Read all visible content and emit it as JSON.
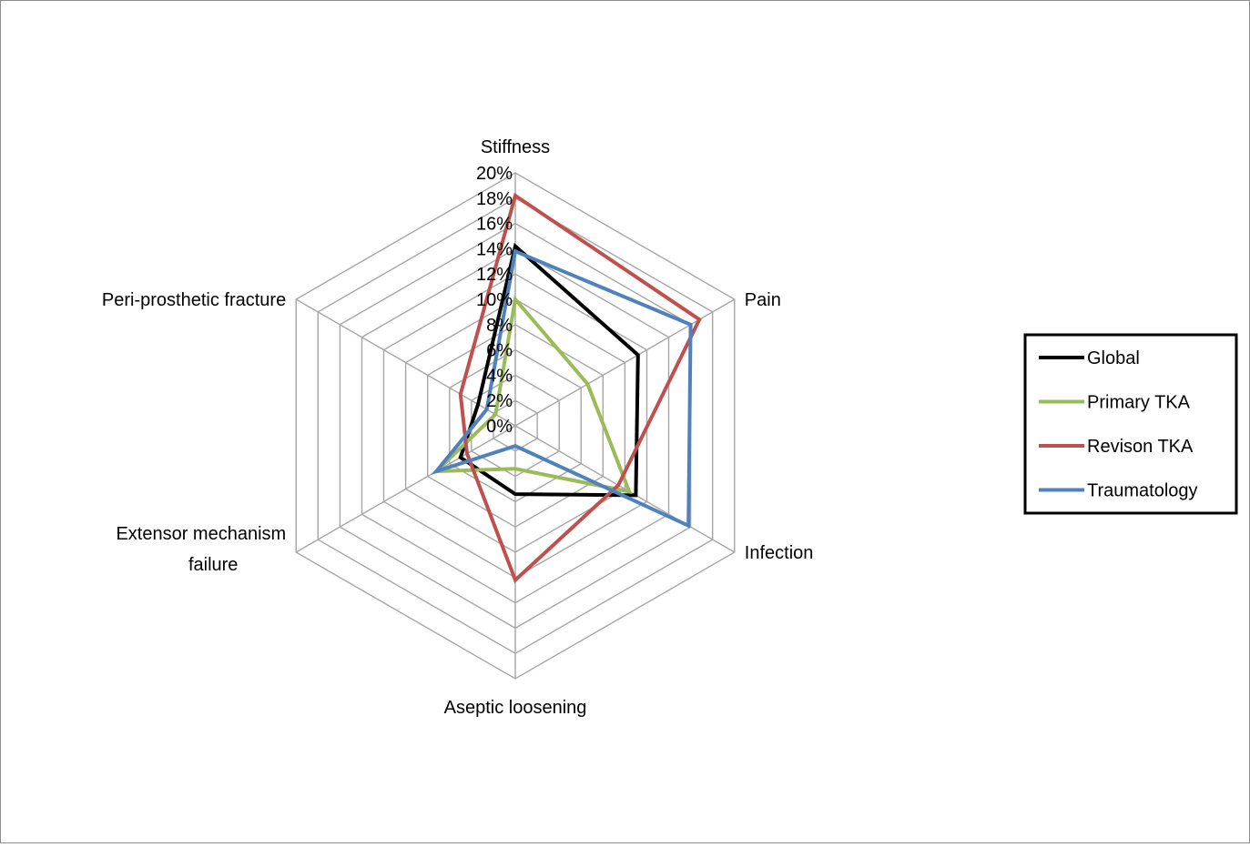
{
  "chart_data": {
    "type": "radar",
    "title": "",
    "axes": [
      [
        "Stiffness"
      ],
      [
        "Pain"
      ],
      [
        "Infection"
      ],
      [
        "Aseptic loosening"
      ],
      [
        "Extensor mechanism",
        "failure"
      ],
      [
        "Peri-prosthetic fracture"
      ]
    ],
    "tick_labels": [
      "0%",
      "2%",
      "4%",
      "6%",
      "8%",
      "10%",
      "12%",
      "14%",
      "16%",
      "18%",
      "20%"
    ],
    "rmax": 20,
    "tick_step": 2,
    "legend_position": "right",
    "series": [
      {
        "name": "Global",
        "color": "#000000",
        "values": [
          14.2,
          11.2,
          11.0,
          5.4,
          5.0,
          3.4
        ]
      },
      {
        "name": "Primary TKA",
        "color": "#9BBB59",
        "values": [
          10.0,
          6.6,
          10.4,
          3.4,
          7.2,
          1.8
        ]
      },
      {
        "name": "Revison TKA",
        "color": "#C0504D",
        "values": [
          18.2,
          16.8,
          9.4,
          12.2,
          4.4,
          5.0
        ]
      },
      {
        "name": "Traumatology",
        "color": "#4F81BD",
        "values": [
          13.8,
          16.0,
          15.8,
          1.6,
          7.2,
          2.6
        ]
      }
    ]
  }
}
